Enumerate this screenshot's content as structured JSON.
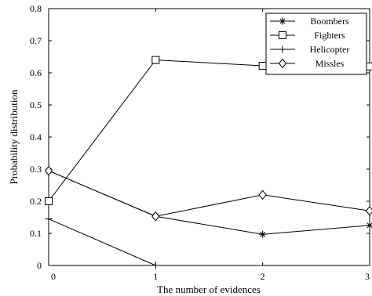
{
  "chart_data": {
    "type": "line",
    "xlabel": "The number of evidences",
    "ylabel": "Probability distribution",
    "x": [
      0,
      1,
      2,
      3
    ],
    "xlim": [
      0,
      3
    ],
    "ylim": [
      0,
      0.8
    ],
    "x_ticks": [
      "0",
      "1",
      "2",
      "3"
    ],
    "y_ticks": [
      "0",
      "0.1",
      "0.2",
      "0.3",
      "0.4",
      "0.5",
      "0.6",
      "0.7",
      "0.8"
    ],
    "grid": false,
    "legend_position": "top-right",
    "series": [
      {
        "name": "Boombers",
        "marker": "asterisk",
        "color": "#000000",
        "values": [
          0.295,
          0.153,
          0.097,
          0.125
        ]
      },
      {
        "name": "Fighters",
        "marker": "square",
        "color": "#000000",
        "values": [
          0.2,
          0.64,
          0.622,
          0.62
        ]
      },
      {
        "name": "Helicopter",
        "marker": "plus",
        "color": "#000000",
        "values": [
          0.145,
          0.0,
          null,
          null
        ]
      },
      {
        "name": "Missles",
        "marker": "diamond",
        "color": "#000000",
        "values": [
          0.295,
          0.153,
          0.22,
          0.17
        ]
      }
    ]
  }
}
